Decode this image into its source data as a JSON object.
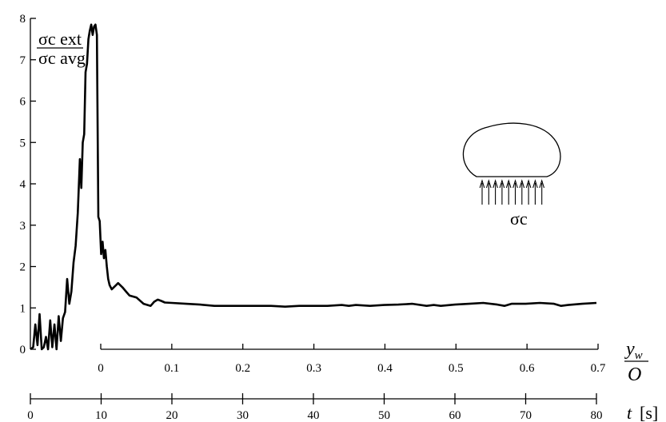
{
  "chart_data": {
    "type": "line",
    "title": "",
    "ylabel": {
      "numerator": "σc ext",
      "denominator": "σc avg"
    },
    "ylim": [
      0,
      8
    ],
    "yticks": [
      0,
      1,
      2,
      3,
      4,
      5,
      6,
      7,
      8
    ],
    "x_axes": [
      {
        "name": "yw/O",
        "label_num": "y",
        "label_sub": "w",
        "label_den": "O",
        "ticks": [
          "0",
          "0.1",
          "0.2",
          "0.3",
          "0.4",
          "0.5",
          "0.6",
          "0.7"
        ],
        "range": [
          0,
          0.7
        ]
      },
      {
        "name": "t",
        "label": "t",
        "unit": "[s]",
        "ticks": [
          "0",
          "10",
          "20",
          "30",
          "40",
          "50",
          "60",
          "70",
          "80"
        ],
        "range": [
          0,
          80
        ]
      }
    ],
    "series": [
      {
        "x_axis": "t",
        "x": [
          0,
          0.4,
          0.7,
          1.0,
          1.3,
          1.6,
          1.9,
          2.2,
          2.5,
          2.8,
          3.1,
          3.4,
          3.7,
          4.0,
          4.3,
          4.6,
          4.9,
          5.2,
          5.5,
          5.8,
          6.1,
          6.4,
          6.7,
          7.0,
          7.2,
          7.4,
          7.6,
          7.8,
          8.0,
          8.2,
          8.4,
          8.6,
          8.8,
          9.0,
          9.2,
          9.4,
          9.6,
          9.8,
          10.0,
          10.2,
          10.4,
          10.6,
          10.8,
          11.0,
          11.2,
          11.5,
          11.8,
          12.1,
          12.4,
          12.7,
          13.0,
          13.5,
          14.0,
          15.0,
          16.0,
          17.0,
          17.5,
          18.0,
          18.5,
          19.0,
          20.0,
          22.0,
          24.0,
          26.0,
          28.0,
          30.0,
          32.0,
          34.0,
          36.0,
          38.0,
          40.0,
          42.0,
          44.0,
          45.0,
          46.0,
          48.0,
          50.0,
          52.0,
          54.0,
          56.0,
          57.0,
          58.0,
          60.0,
          62.0,
          64.0,
          66.0,
          67.0,
          68.0,
          70.0,
          72.0,
          74.0,
          75.0,
          76.0,
          78.0,
          80.0
        ],
        "y": [
          0,
          0.05,
          0.6,
          0.1,
          0.85,
          0,
          0.05,
          0.3,
          0,
          0.7,
          0.05,
          0.6,
          0,
          0.8,
          0.2,
          0.75,
          0.9,
          1.7,
          1.1,
          1.4,
          2.1,
          2.5,
          3.3,
          4.6,
          3.9,
          5.0,
          5.2,
          6.7,
          6.9,
          7.5,
          7.7,
          7.85,
          7.6,
          7.8,
          7.85,
          7.6,
          3.2,
          3.1,
          2.3,
          2.6,
          2.2,
          2.4,
          2.0,
          1.7,
          1.55,
          1.45,
          1.5,
          1.55,
          1.6,
          1.55,
          1.5,
          1.4,
          1.3,
          1.25,
          1.1,
          1.05,
          1.15,
          1.2,
          1.17,
          1.13,
          1.12,
          1.1,
          1.08,
          1.05,
          1.05,
          1.05,
          1.05,
          1.05,
          1.03,
          1.05,
          1.05,
          1.05,
          1.07,
          1.05,
          1.07,
          1.05,
          1.07,
          1.08,
          1.1,
          1.05,
          1.07,
          1.05,
          1.08,
          1.1,
          1.12,
          1.08,
          1.05,
          1.1,
          1.1,
          1.12,
          1.1,
          1.05,
          1.07,
          1.1,
          1.12
        ]
      }
    ],
    "grid": false,
    "legend": "none"
  },
  "inset": {
    "shape": "dome",
    "arrow_count": 10,
    "label": "σc"
  }
}
